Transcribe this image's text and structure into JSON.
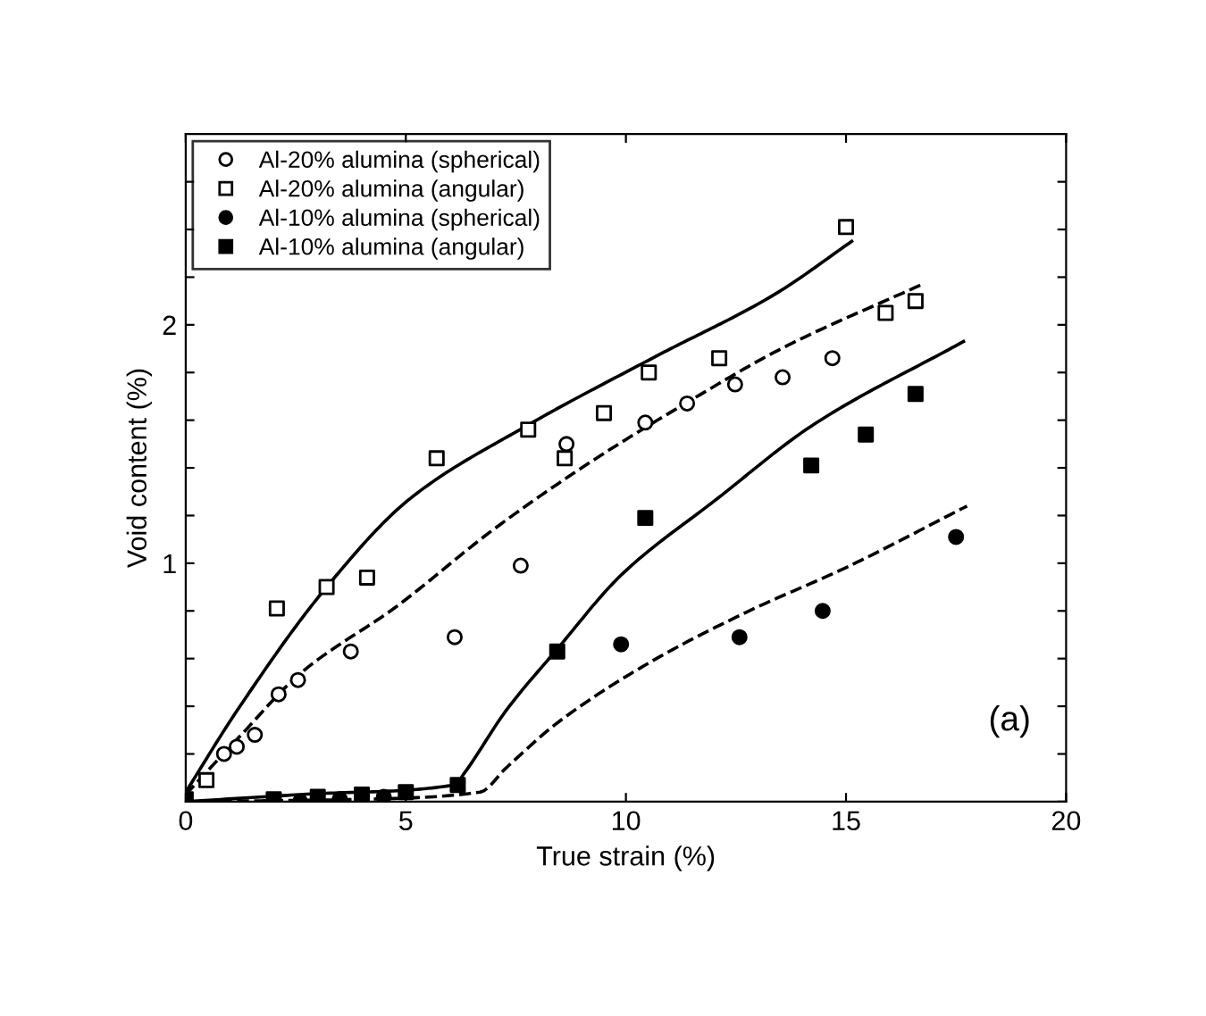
{
  "chart_data": {
    "type": "scatter",
    "xlabel": "True strain (%)",
    "ylabel": "Void content (%)",
    "xlim": [
      0,
      20
    ],
    "ylim": [
      0,
      2.8
    ],
    "xticks": [
      0,
      5,
      10,
      15,
      20
    ],
    "yticks": [
      {
        "value": 0,
        "label": null
      },
      {
        "value": 0.2,
        "label": null
      },
      {
        "value": 0.4,
        "label": null
      },
      {
        "value": 0.6,
        "label": null
      },
      {
        "value": 0.8,
        "label": null
      },
      1,
      {
        "value": 1.2,
        "label": null
      },
      {
        "value": 1.4,
        "label": null
      },
      {
        "value": 1.6,
        "label": null
      },
      {
        "value": 1.8,
        "label": null
      },
      2,
      {
        "value": 2.2,
        "label": null
      },
      {
        "value": 2.4,
        "label": null
      },
      {
        "value": 2.6,
        "label": null
      }
    ],
    "grid": false,
    "legend": "top left",
    "annotations": [
      "(a)"
    ],
    "series": [
      {
        "name": "Al-20% alumina (spherical)",
        "marker": "circle",
        "color": "#ffffff",
        "x": [
          0.87,
          1.16,
          1.57,
          2.11,
          2.55,
          3.75,
          6.11,
          7.61,
          8.65,
          10.44,
          11.39,
          12.48,
          13.56,
          14.69
        ],
        "values": [
          0.2,
          0.23,
          0.28,
          0.45,
          0.51,
          0.63,
          0.69,
          0.99,
          1.5,
          1.59,
          1.67,
          1.75,
          1.78,
          1.86
        ]
      },
      {
        "name": "Al-20% alumina (angular)",
        "marker": "square",
        "color": "#ffffff",
        "x": [
          0.47,
          2.07,
          3.2,
          4.12,
          5.7,
          7.78,
          8.61,
          9.5,
          10.52,
          12.12,
          15.9,
          16.58,
          15.0
        ],
        "values": [
          0.09,
          0.81,
          0.9,
          0.94,
          1.44,
          1.56,
          1.44,
          1.63,
          1.8,
          1.86,
          2.05,
          2.1,
          2.41
        ]
      },
      {
        "name": "Al-10% alumina (spherical)",
        "marker": "circle",
        "color": "#000000",
        "x": [
          2.6,
          3.5,
          4.5,
          9.89,
          12.58,
          14.47,
          17.5
        ],
        "values": [
          0,
          0.01,
          0.02,
          0.66,
          0.69,
          0.8,
          1.11
        ]
      },
      {
        "name": "Al-10% alumina (angular)",
        "marker": "square",
        "color": "#000000",
        "x": [
          0,
          2,
          3,
          4,
          5,
          6.18,
          8.44,
          10.44,
          14.21,
          15.45,
          16.58
        ],
        "values": [
          0.01,
          0.01,
          0.02,
          0.03,
          0.04,
          0.07,
          0.63,
          1.19,
          1.41,
          1.54,
          1.71
        ]
      },
      {
        "type": "line",
        "line_style": "solid",
        "color": "#000000",
        "x": [
          0,
          1.16,
          3.2,
          5.09,
          7.78,
          10.6,
          13.4,
          15.13
        ],
        "values": [
          0.04,
          0.38,
          0.9,
          1.27,
          1.58,
          1.86,
          2.13,
          2.35
        ]
      },
      {
        "type": "line",
        "line_style": "dashed",
        "color": "#000000",
        "x": [
          0,
          1.16,
          2.62,
          4.8,
          6.98,
          9.16,
          11.35,
          13.53,
          16.73
        ],
        "values": [
          0.03,
          0.26,
          0.54,
          0.82,
          1.14,
          1.42,
          1.67,
          1.9,
          2.17
        ]
      },
      {
        "type": "line",
        "line_style": "solid",
        "color": "#000000",
        "x": [
          0,
          2.62,
          6.11,
          6.33,
          7.27,
          8.44,
          9.89,
          12.07,
          14.25,
          17.67
        ],
        "values": [
          0,
          0.03,
          0.07,
          0.12,
          0.38,
          0.64,
          0.95,
          1.27,
          1.58,
          1.93
        ]
      },
      {
        "type": "line",
        "line_style": "dashed",
        "color": "#000000",
        "x": [
          0,
          4.07,
          6.69,
          7.27,
          8.44,
          10.6,
          12.8,
          14.98,
          17.75
        ],
        "values": [
          0,
          0.01,
          0.04,
          0.14,
          0.33,
          0.59,
          0.8,
          0.98,
          1.24
        ]
      }
    ]
  }
}
